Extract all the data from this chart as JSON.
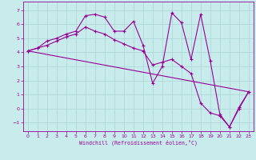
{
  "xlabel": "Windchill (Refroidissement éolien,°C)",
  "background_color": "#c8ecec",
  "grid_color": "#b0d8d8",
  "line_color": "#990099",
  "xlim": [
    -0.5,
    23.5
  ],
  "ylim": [
    -1.6,
    7.6
  ],
  "xticks": [
    0,
    1,
    2,
    3,
    4,
    5,
    6,
    7,
    8,
    9,
    10,
    11,
    12,
    13,
    14,
    15,
    16,
    17,
    18,
    19,
    20,
    21,
    22,
    23
  ],
  "yticks": [
    -1,
    0,
    1,
    2,
    3,
    4,
    5,
    6,
    7
  ],
  "series1_x": [
    0,
    1,
    2,
    3,
    4,
    5,
    6,
    7,
    8,
    9,
    10,
    11,
    12,
    13,
    14,
    15,
    16,
    17,
    18,
    19,
    20,
    21,
    22,
    23
  ],
  "series1_y": [
    4.1,
    4.3,
    4.8,
    5.0,
    5.3,
    5.5,
    6.6,
    6.7,
    6.5,
    5.5,
    5.5,
    6.2,
    4.5,
    1.8,
    3.0,
    6.8,
    6.1,
    3.5,
    6.7,
    3.4,
    -0.4,
    -1.3,
    0.1,
    1.2
  ],
  "series2_x": [
    0,
    1,
    2,
    3,
    4,
    5,
    6,
    7,
    8,
    9,
    10,
    11,
    12,
    13,
    14,
    15,
    16,
    17,
    18,
    19,
    20,
    21,
    22,
    23
  ],
  "series2_y": [
    4.1,
    4.3,
    4.5,
    4.8,
    5.1,
    5.3,
    5.8,
    5.5,
    5.3,
    4.9,
    4.6,
    4.3,
    4.1,
    3.1,
    3.3,
    3.5,
    3.0,
    2.5,
    0.4,
    -0.3,
    -0.5,
    -1.3,
    0.0,
    1.2
  ],
  "series3_x": [
    0,
    23
  ],
  "series3_y": [
    4.1,
    1.2
  ]
}
